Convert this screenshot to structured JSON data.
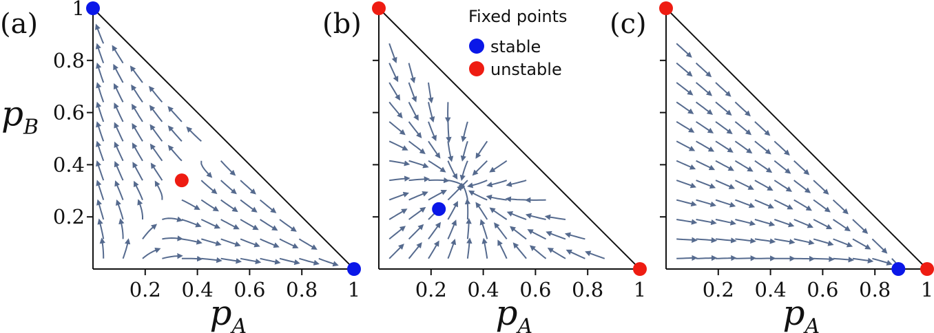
{
  "chart_data": [
    {
      "type": "streamplot",
      "panel_label": "(a)",
      "xlabel": "p",
      "xlabel_sub": "A",
      "ylabel": "p",
      "ylabel_sub": "B",
      "xlim": [
        0,
        1
      ],
      "ylim": [
        0,
        1
      ],
      "x_ticks": [
        "0.2",
        "0.4",
        "0.6",
        "0.8",
        "1"
      ],
      "y_ticks": [
        "0.2",
        "0.4",
        "0.6",
        "0.8",
        "1"
      ],
      "fixed_points": [
        {
          "x": 0.0,
          "y": 1.0,
          "stability": "stable"
        },
        {
          "x": 1.0,
          "y": 0.0,
          "stability": "stable"
        },
        {
          "x": 0.34,
          "y": 0.34,
          "stability": "unstable"
        }
      ]
    },
    {
      "type": "streamplot",
      "panel_label": "(b)",
      "xlabel": "p",
      "xlabel_sub": "A",
      "xlim": [
        0,
        1
      ],
      "ylim": [
        0,
        1
      ],
      "x_ticks": [
        "0.2",
        "0.4",
        "0.6",
        "0.8",
        "1"
      ],
      "fixed_points": [
        {
          "x": 0.0,
          "y": 1.0,
          "stability": "unstable"
        },
        {
          "x": 1.0,
          "y": 0.0,
          "stability": "unstable"
        },
        {
          "x": 0.23,
          "y": 0.23,
          "stability": "stable"
        }
      ]
    },
    {
      "type": "streamplot",
      "panel_label": "(c)",
      "xlabel": "p",
      "xlabel_sub": "A",
      "xlim": [
        0,
        1
      ],
      "ylim": [
        0,
        1
      ],
      "x_ticks": [
        "0.2",
        "0.4",
        "0.6",
        "0.8",
        "1"
      ],
      "fixed_points": [
        {
          "x": 0.0,
          "y": 1.0,
          "stability": "unstable"
        },
        {
          "x": 1.0,
          "y": 0.0,
          "stability": "unstable"
        },
        {
          "x": 0.89,
          "y": 0.0,
          "stability": "stable"
        }
      ]
    }
  ],
  "legend": {
    "title": "Fixed points",
    "entries": [
      {
        "label": "stable",
        "color": "#0a17e8"
      },
      {
        "label": "unstable",
        "color": "#ee1c12"
      }
    ]
  },
  "colors": {
    "stream": "#556a8e",
    "stable": "#0a17e8",
    "unstable": "#ee1c12",
    "axis": "#111111"
  }
}
